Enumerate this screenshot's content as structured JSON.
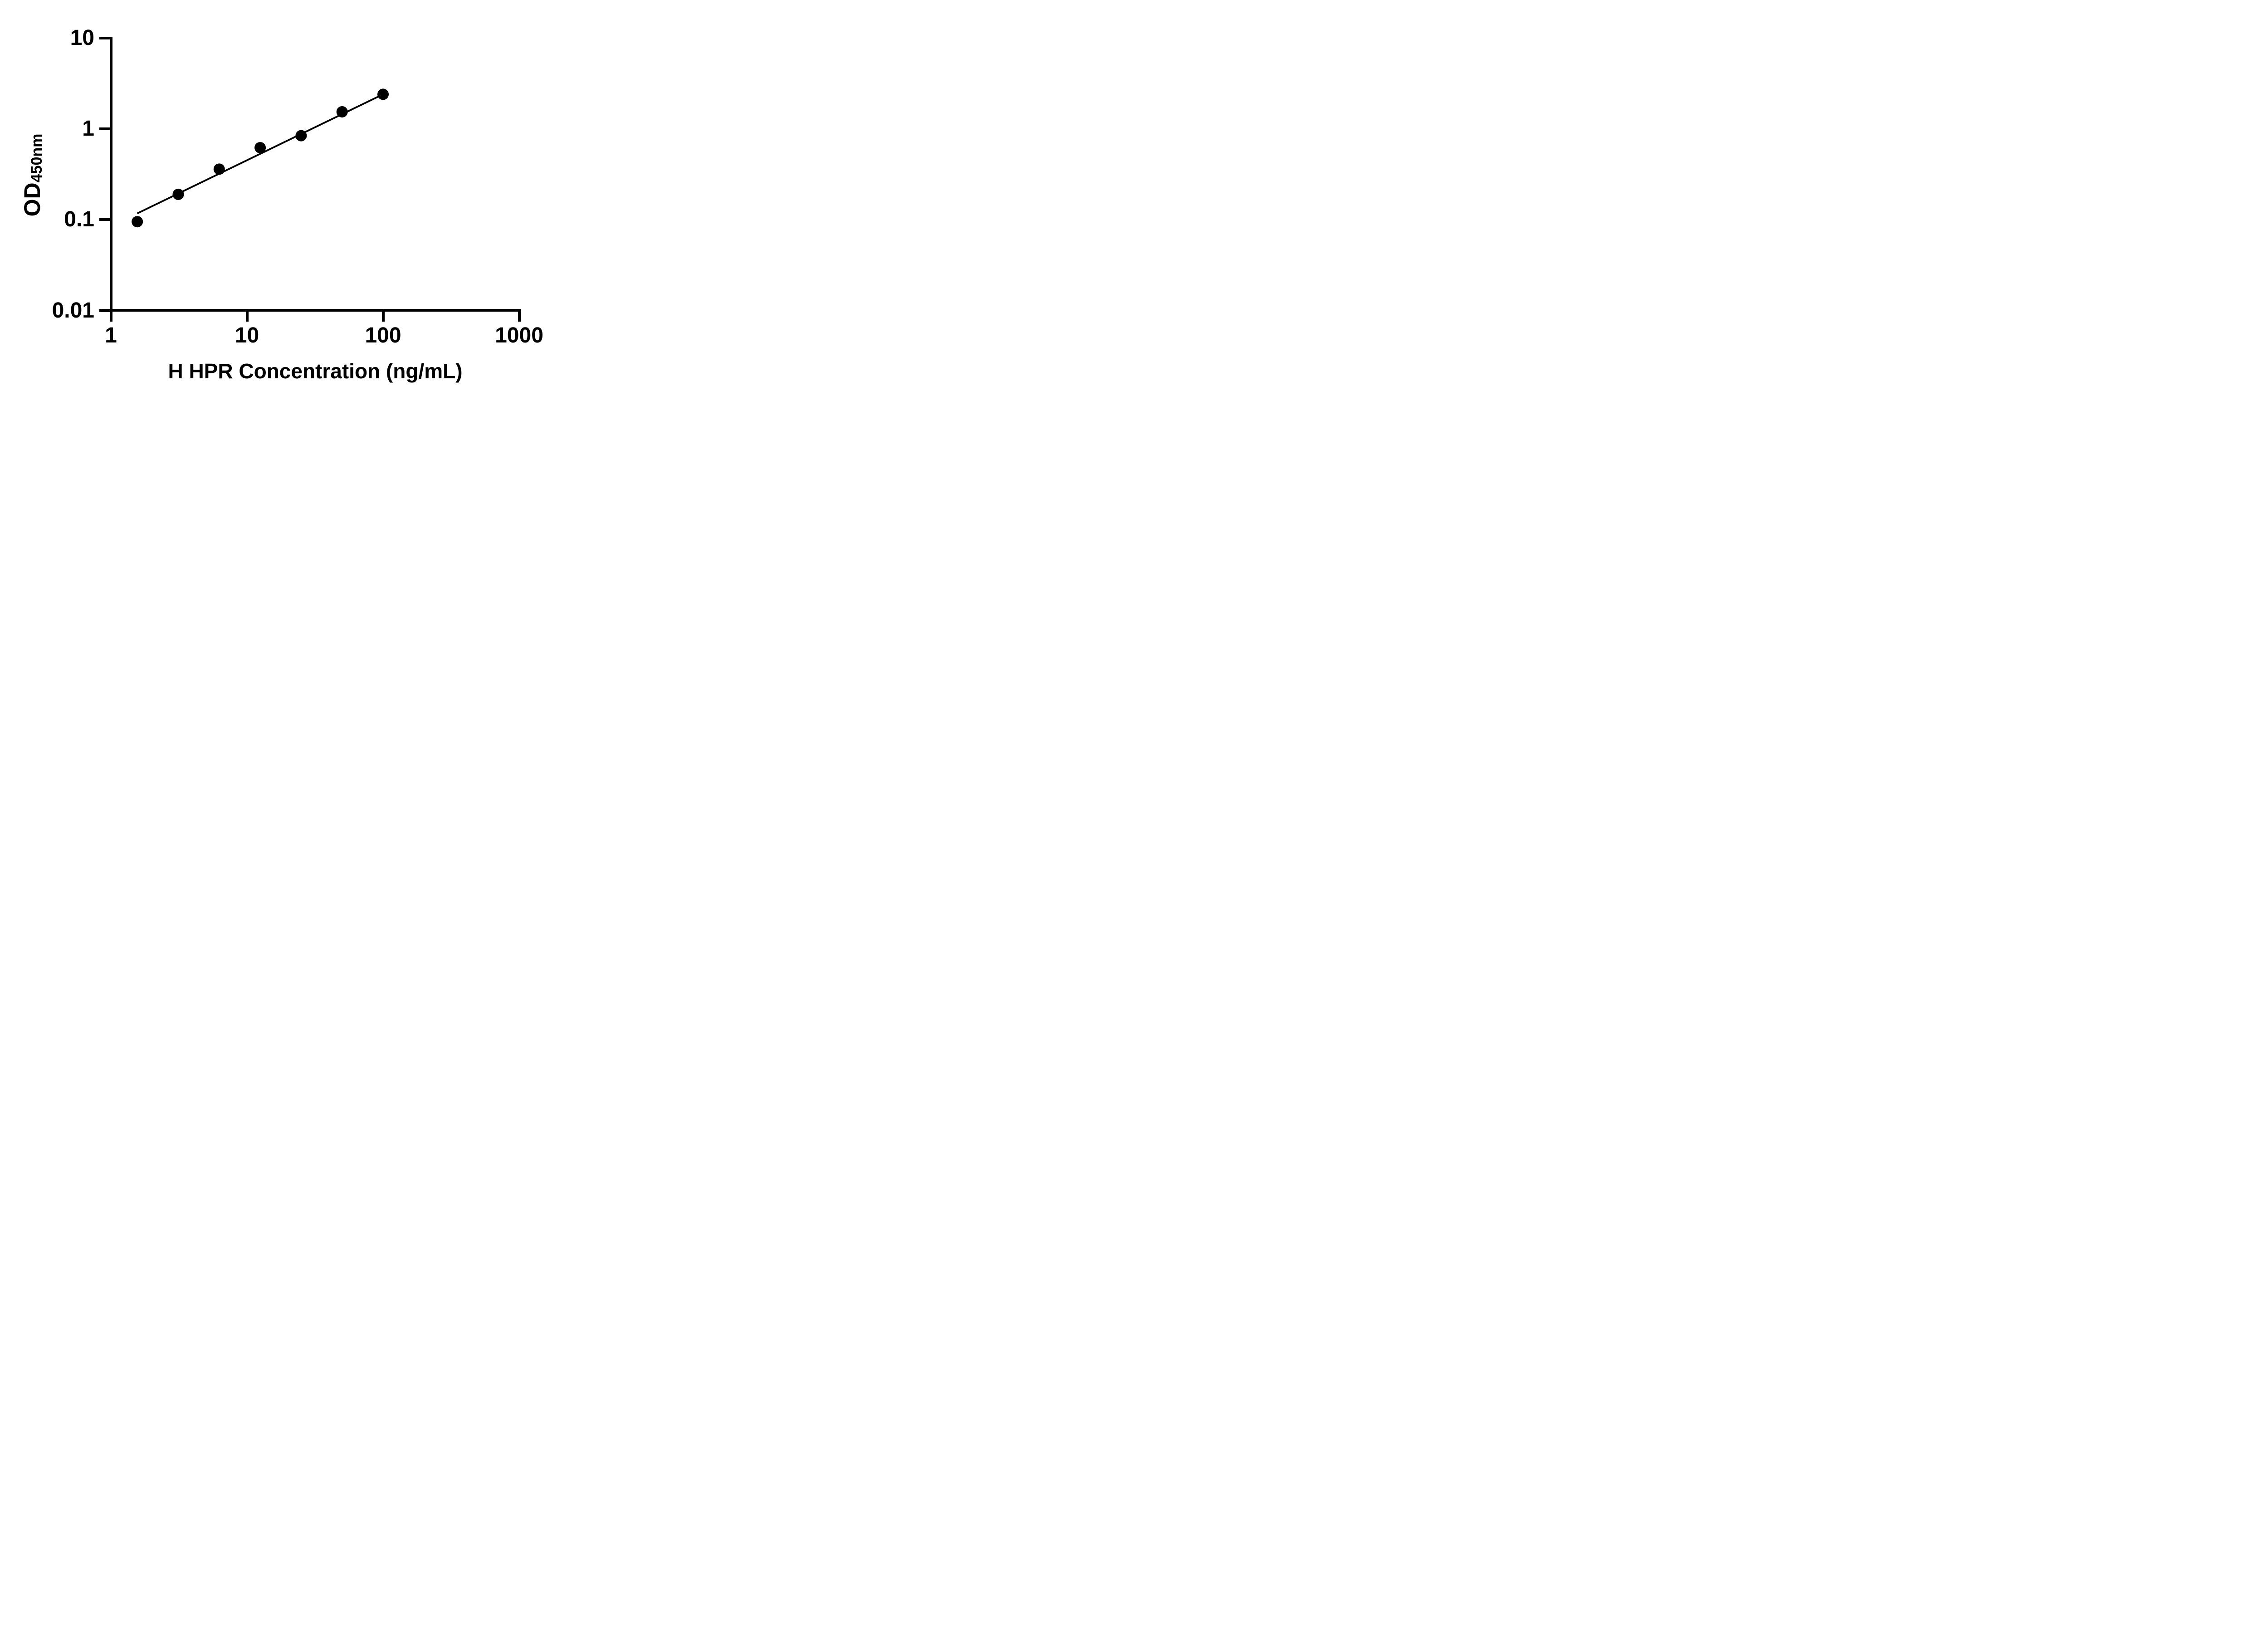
{
  "figure": {
    "background": "#ffffff",
    "ink_color": "#000000"
  },
  "chart_data": {
    "type": "scatter",
    "title": "",
    "xlabel": "H HPR Concentration (ng/mL)",
    "ylabel_main": "OD",
    "ylabel_sub": "450nm",
    "x_scale": "log10",
    "y_scale": "log10",
    "xlim": [
      1,
      1000
    ],
    "ylim": [
      0.01,
      10
    ],
    "grid": false,
    "legend": null,
    "marker_color": "#000000",
    "line_color": "#000000",
    "x_ticks": [
      {
        "label": "1",
        "value": 1
      },
      {
        "label": "10",
        "value": 10
      },
      {
        "label": "100",
        "value": 100
      },
      {
        "label": "1000",
        "value": 1000
      }
    ],
    "y_ticks": [
      {
        "label": "10",
        "value": 10
      },
      {
        "label": "1",
        "value": 1
      },
      {
        "label": "0.1",
        "value": 0.1
      },
      {
        "label": "0.01",
        "value": 0.01
      }
    ],
    "points": [
      {
        "x": 1.5625,
        "od": 0.095
      },
      {
        "x": 3.125,
        "od": 0.19
      },
      {
        "x": 6.25,
        "od": 0.36
      },
      {
        "x": 12.5,
        "od": 0.62
      },
      {
        "x": 25,
        "od": 0.84
      },
      {
        "x": 50,
        "od": 1.54
      },
      {
        "x": 100,
        "od": 2.4
      }
    ],
    "trend_line": {
      "x1": 1.56,
      "od1": 0.117,
      "x2": 100,
      "od2": 2.4
    }
  }
}
